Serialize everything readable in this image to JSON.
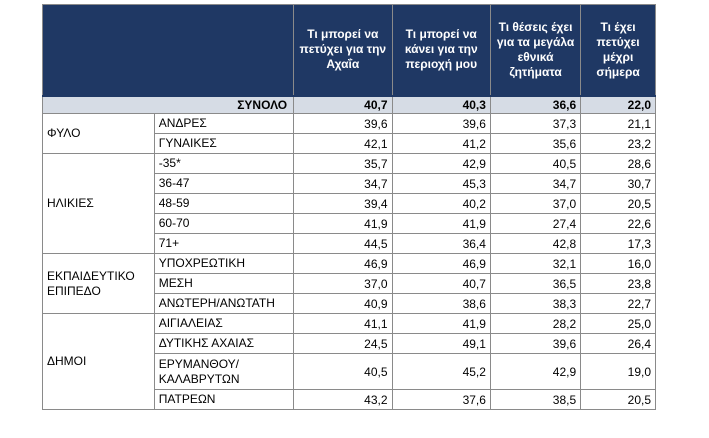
{
  "headers": [
    "Τι μπορεί να πετύχει για την Αχαΐα",
    "Τι μπορεί να κάνει για την περιοχή μου",
    "Τι θέσεις έχει για τα μεγάλα εθνικά ζητήματα",
    "Τι έχει πετύχει μέχρι σήμερα"
  ],
  "total": {
    "label": "ΣΥΝΟΛΟ",
    "values": [
      "40,7",
      "40,3",
      "36,6",
      "22,0"
    ]
  },
  "groups": [
    {
      "label": "ΦΥΛΟ",
      "rows": [
        {
          "label": "ΑΝΔΡΕΣ",
          "values": [
            "39,6",
            "39,6",
            "37,3",
            "21,1"
          ]
        },
        {
          "label": "ΓΥΝΑΙΚΕΣ",
          "values": [
            "42,1",
            "41,2",
            "35,6",
            "23,2"
          ]
        }
      ]
    },
    {
      "label": "ΗΛΙΚΙΕΣ",
      "rows": [
        {
          "label": "-35*",
          "values": [
            "35,7",
            "42,9",
            "40,5",
            "28,6"
          ]
        },
        {
          "label": "36-47",
          "values": [
            "34,7",
            "45,3",
            "34,7",
            "30,7"
          ]
        },
        {
          "label": "48-59",
          "values": [
            "39,4",
            "40,2",
            "37,0",
            "20,5"
          ]
        },
        {
          "label": "60-70",
          "values": [
            "41,9",
            "41,9",
            "27,4",
            "22,6"
          ]
        },
        {
          "label": "71+",
          "values": [
            "44,5",
            "36,4",
            "42,8",
            "17,3"
          ]
        }
      ]
    },
    {
      "label": "ΕΚΠΑΙΔΕΥΤΙΚΟ ΕΠΙΠΕΔΟ",
      "rows": [
        {
          "label": "ΥΠΟΧΡΕΩΤΙΚΗ",
          "values": [
            "46,9",
            "46,9",
            "32,1",
            "16,0"
          ]
        },
        {
          "label": "ΜΕΣΗ",
          "values": [
            "37,0",
            "40,7",
            "36,5",
            "23,8"
          ]
        },
        {
          "label": "ΑΝΩΤΕΡΗ/ΑΝΩΤΑΤΗ",
          "values": [
            "40,9",
            "38,6",
            "38,3",
            "22,7"
          ]
        }
      ]
    },
    {
      "label": "ΔΗΜΟΙ",
      "rows": [
        {
          "label": "ΑΙΓΙΑΛΕΙΑΣ",
          "values": [
            "41,1",
            "41,9",
            "28,2",
            "25,0"
          ]
        },
        {
          "label": "ΔΥΤΙΚΗΣ ΑΧΑΙΑΣ",
          "values": [
            "24,5",
            "49,1",
            "39,6",
            "26,4"
          ]
        },
        {
          "label": "ΕΡΥΜΑΝΘΟΥ/ ΚΑΛΑΒΡΥΤΩΝ",
          "values": [
            "40,5",
            "45,2",
            "42,9",
            "19,0"
          ],
          "tall": true
        },
        {
          "label": "ΠΑΤΡΕΩΝ",
          "values": [
            "43,2",
            "37,6",
            "38,5",
            "20,5"
          ]
        }
      ]
    }
  ]
}
